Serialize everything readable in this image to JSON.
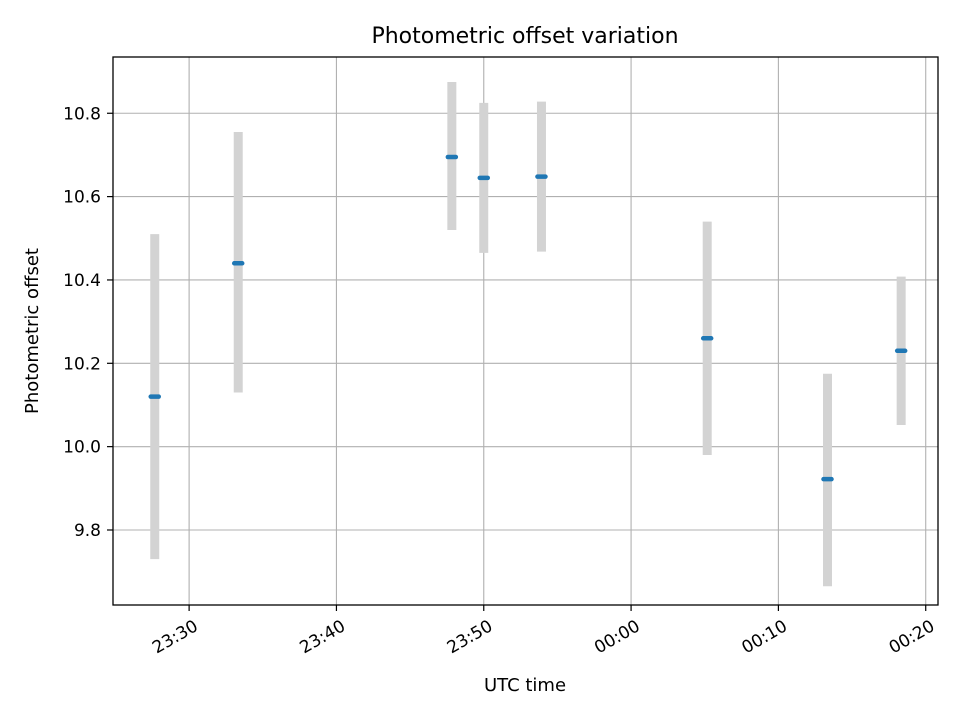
{
  "chart_data": {
    "type": "scatter",
    "title": "Photometric offset variation",
    "xlabel": "UTC time",
    "ylabel": "Photometric offset",
    "x_ticks": [
      "23:30",
      "23:40",
      "23:50",
      "00:00",
      "00:10",
      "00:20"
    ],
    "y_ticks": [
      "9.8",
      "10.0",
      "10.2",
      "10.4",
      "10.6",
      "10.8"
    ],
    "xlim": [
      "23:24:50",
      "00:20:50"
    ],
    "ylim": [
      9.62,
      10.935
    ],
    "grid": true,
    "marker_color": "#1f77b4",
    "errorbar_color": "#d3d3d3",
    "points": [
      {
        "time": "23:27:40",
        "y": 10.12,
        "err_low": 9.73,
        "err_high": 10.51
      },
      {
        "time": "23:33:20",
        "y": 10.44,
        "err_low": 10.13,
        "err_high": 10.755
      },
      {
        "time": "23:47:50",
        "y": 10.695,
        "err_low": 10.52,
        "err_high": 10.875
      },
      {
        "time": "23:50:00",
        "y": 10.645,
        "err_low": 10.465,
        "err_high": 10.825
      },
      {
        "time": "23:53:55",
        "y": 10.648,
        "err_low": 10.468,
        "err_high": 10.828
      },
      {
        "time": "00:05:10",
        "y": 10.26,
        "err_low": 9.98,
        "err_high": 10.54
      },
      {
        "time": "00:13:20",
        "y": 9.922,
        "err_low": 9.665,
        "err_high": 10.175
      },
      {
        "time": "00:18:20",
        "y": 10.23,
        "err_low": 10.052,
        "err_high": 10.408
      }
    ]
  }
}
